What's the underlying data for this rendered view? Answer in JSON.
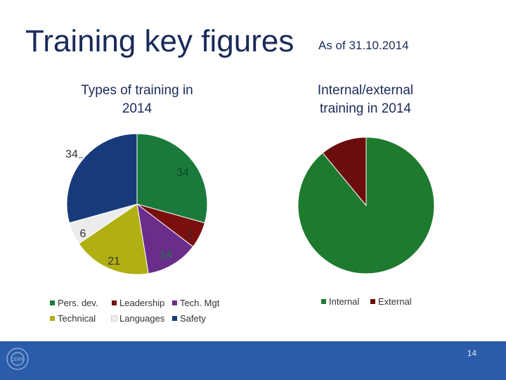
{
  "header": {
    "title": "Training key figures",
    "subtitle": "As of 31.10.2014"
  },
  "chart_data": [
    {
      "type": "pie",
      "title": "Types of training in 2014",
      "categories": [
        "Pers. dev.",
        "Leadership",
        "Tech. Mgt",
        "Technical",
        "Languages",
        "Safety"
      ],
      "values": [
        34,
        7,
        14,
        21,
        6,
        34
      ],
      "labels": [
        "34",
        "7",
        "14",
        "21",
        "6",
        "34"
      ],
      "colors": [
        "#1a7a3c",
        "#7a0f0f",
        "#6a2d8c",
        "#b0b012",
        "#ececec",
        "#173a7a"
      ],
      "legend_placement": "bottom"
    },
    {
      "type": "pie",
      "title": "Internal/external training in 2014",
      "categories": [
        "Internal",
        "External"
      ],
      "values": [
        89,
        11
      ],
      "labels": [
        "89%",
        "11%"
      ],
      "colors": [
        "#1e7a2e",
        "#6b0d0d"
      ],
      "legend_placement": "bottom"
    }
  ],
  "footer": {
    "page_number": "14",
    "logo_text": "CERN"
  }
}
